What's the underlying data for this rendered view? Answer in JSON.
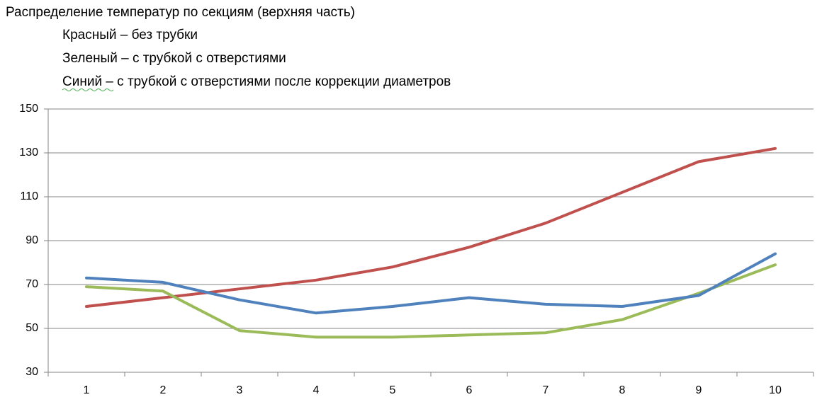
{
  "chart_data": {
    "type": "line",
    "title": "Распределение температур по секциям (верхняя часть)",
    "annotations": [
      "Красный – без трубки",
      "Зеленый – с трубкой с отверстиями",
      "Синий – с трубкой с отверстиями после коррекции диаметров"
    ],
    "categories": [
      "1",
      "2",
      "3",
      "4",
      "5",
      "6",
      "7",
      "8",
      "9",
      "10"
    ],
    "series": [
      {
        "color": "#c0504d",
        "values": [
          60,
          64,
          68,
          72,
          78,
          87,
          98,
          112,
          126,
          132
        ]
      },
      {
        "color": "#9bbb59",
        "values": [
          69,
          67,
          49,
          46,
          46,
          47,
          48,
          54,
          66,
          79
        ]
      },
      {
        "color": "#4f81bd",
        "values": [
          73,
          71,
          63,
          57,
          60,
          64,
          61,
          60,
          65,
          84
        ]
      }
    ],
    "ylim": [
      30,
      150
    ],
    "yticks": [
      30,
      50,
      70,
      90,
      110,
      130,
      150
    ],
    "grid": true
  }
}
